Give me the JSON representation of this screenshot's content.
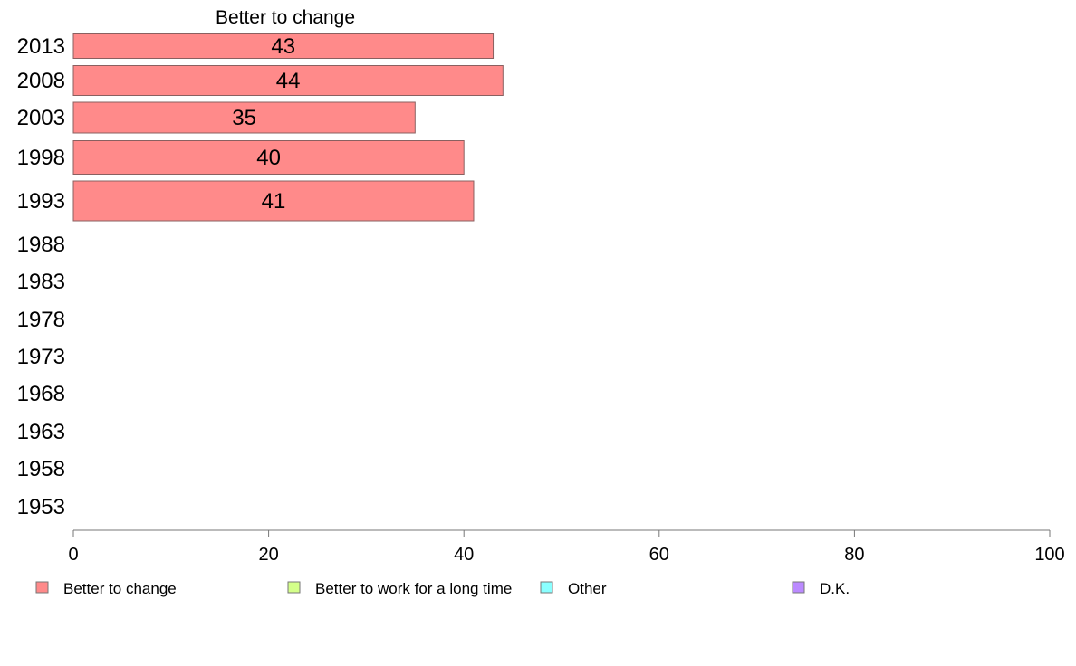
{
  "chart_data": {
    "type": "bar",
    "orientation": "horizontal",
    "title": "Better to change",
    "categories": [
      "2013",
      "2008",
      "2003",
      "1998",
      "1993",
      "1988",
      "1983",
      "1978",
      "1973",
      "1968",
      "1963",
      "1958",
      "1953"
    ],
    "series": [
      {
        "name": "Better to change",
        "color": "#ff8a8a",
        "values": [
          43,
          44,
          35,
          40,
          41,
          null,
          null,
          null,
          null,
          null,
          null,
          null,
          null
        ]
      }
    ],
    "xlim": [
      0,
      100
    ],
    "xticks": [
      0,
      20,
      40,
      60,
      80,
      100
    ],
    "grid": false,
    "legend_position": "bottom",
    "legend": [
      {
        "name": "Better to change",
        "color": "#ff8a8a"
      },
      {
        "name": "Better to work for a long time",
        "color": "#d4ff8a"
      },
      {
        "name": "Other",
        "color": "#8affff"
      },
      {
        "name": "D.K.",
        "color": "#bb8aff"
      }
    ]
  }
}
